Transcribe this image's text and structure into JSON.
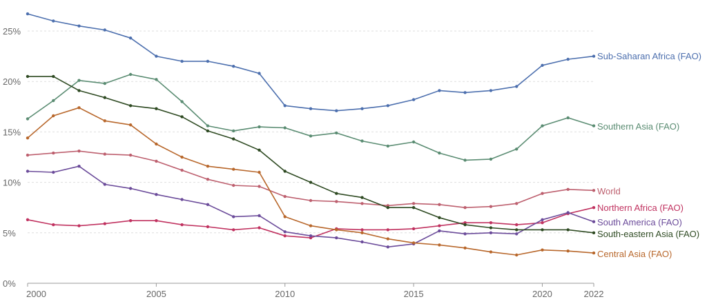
{
  "chart_data": {
    "type": "line",
    "title": "",
    "xlabel": "",
    "ylabel": "",
    "xlim": [
      2000,
      2022
    ],
    "ylim": [
      0,
      25
    ],
    "y_unit": "%",
    "grid": true,
    "legend": "inline-right",
    "x_ticks": [
      2000,
      2005,
      2010,
      2015,
      2020,
      2022
    ],
    "x_tick_labels": [
      "2000",
      "2005",
      "2010",
      "2015",
      "2020",
      "2022"
    ],
    "y_ticks": [
      0,
      5,
      10,
      15,
      20,
      25
    ],
    "y_tick_labels": [
      "0%",
      "5%",
      "10%",
      "15%",
      "20%",
      "25%"
    ],
    "x": [
      2000,
      2001,
      2002,
      2003,
      2004,
      2005,
      2006,
      2007,
      2008,
      2009,
      2010,
      2011,
      2012,
      2013,
      2014,
      2015,
      2016,
      2017,
      2018,
      2019,
      2020,
      2021,
      2022
    ],
    "series": [
      {
        "name": "Sub-Saharan Africa (FAO)",
        "color": "#4c6fae",
        "values": [
          26.7,
          26.0,
          25.5,
          25.1,
          24.3,
          22.5,
          22.0,
          22.0,
          21.5,
          20.8,
          17.6,
          17.3,
          17.1,
          17.3,
          17.6,
          18.2,
          19.1,
          18.9,
          19.1,
          19.5,
          21.6,
          22.2,
          22.5
        ]
      },
      {
        "name": "Southern Asia (FAO)",
        "color": "#5a8c72",
        "values": [
          16.3,
          18.1,
          20.1,
          19.8,
          20.7,
          20.2,
          18.0,
          15.6,
          15.1,
          15.5,
          15.4,
          14.6,
          14.9,
          14.1,
          13.6,
          14.0,
          12.9,
          12.2,
          12.3,
          13.3,
          15.6,
          16.4,
          15.6
        ]
      },
      {
        "name": "World",
        "color": "#bd5f6e",
        "values": [
          12.7,
          12.9,
          13.1,
          12.8,
          12.7,
          12.1,
          11.2,
          10.3,
          9.7,
          9.6,
          8.6,
          8.2,
          8.1,
          7.9,
          7.7,
          7.9,
          7.8,
          7.5,
          7.6,
          7.9,
          8.9,
          9.3,
          9.2
        ]
      },
      {
        "name": "Northern Africa (FAO)",
        "color": "#c0315f",
        "values": [
          6.3,
          5.8,
          5.7,
          5.9,
          6.2,
          6.2,
          5.8,
          5.6,
          5.3,
          5.5,
          4.7,
          4.5,
          5.4,
          5.3,
          5.3,
          5.4,
          5.7,
          6.0,
          6.0,
          5.8,
          6.0,
          6.9,
          7.5
        ]
      },
      {
        "name": "South America (FAO)",
        "color": "#6b4b9a",
        "values": [
          11.1,
          11.0,
          11.6,
          9.8,
          9.4,
          8.8,
          8.3,
          7.8,
          6.6,
          6.7,
          5.1,
          4.7,
          4.5,
          4.1,
          3.6,
          3.9,
          5.2,
          4.9,
          5.0,
          4.9,
          6.3,
          7.0,
          6.1
        ]
      },
      {
        "name": "South-eastern Asia (FAO)",
        "color": "#2e4a22",
        "values": [
          20.5,
          20.5,
          19.1,
          18.4,
          17.6,
          17.3,
          16.5,
          15.1,
          14.3,
          13.2,
          11.1,
          10.0,
          8.9,
          8.5,
          7.5,
          7.5,
          6.5,
          5.8,
          5.5,
          5.3,
          5.3,
          5.3,
          5.0
        ]
      },
      {
        "name": "Central Asia (FAO)",
        "color": "#b8672b",
        "values": [
          14.4,
          16.6,
          17.4,
          16.1,
          15.7,
          13.8,
          12.5,
          11.6,
          11.3,
          11.0,
          6.6,
          5.7,
          5.3,
          5.0,
          4.4,
          4.0,
          3.8,
          3.5,
          3.1,
          2.8,
          3.3,
          3.2,
          3.0
        ]
      }
    ]
  }
}
